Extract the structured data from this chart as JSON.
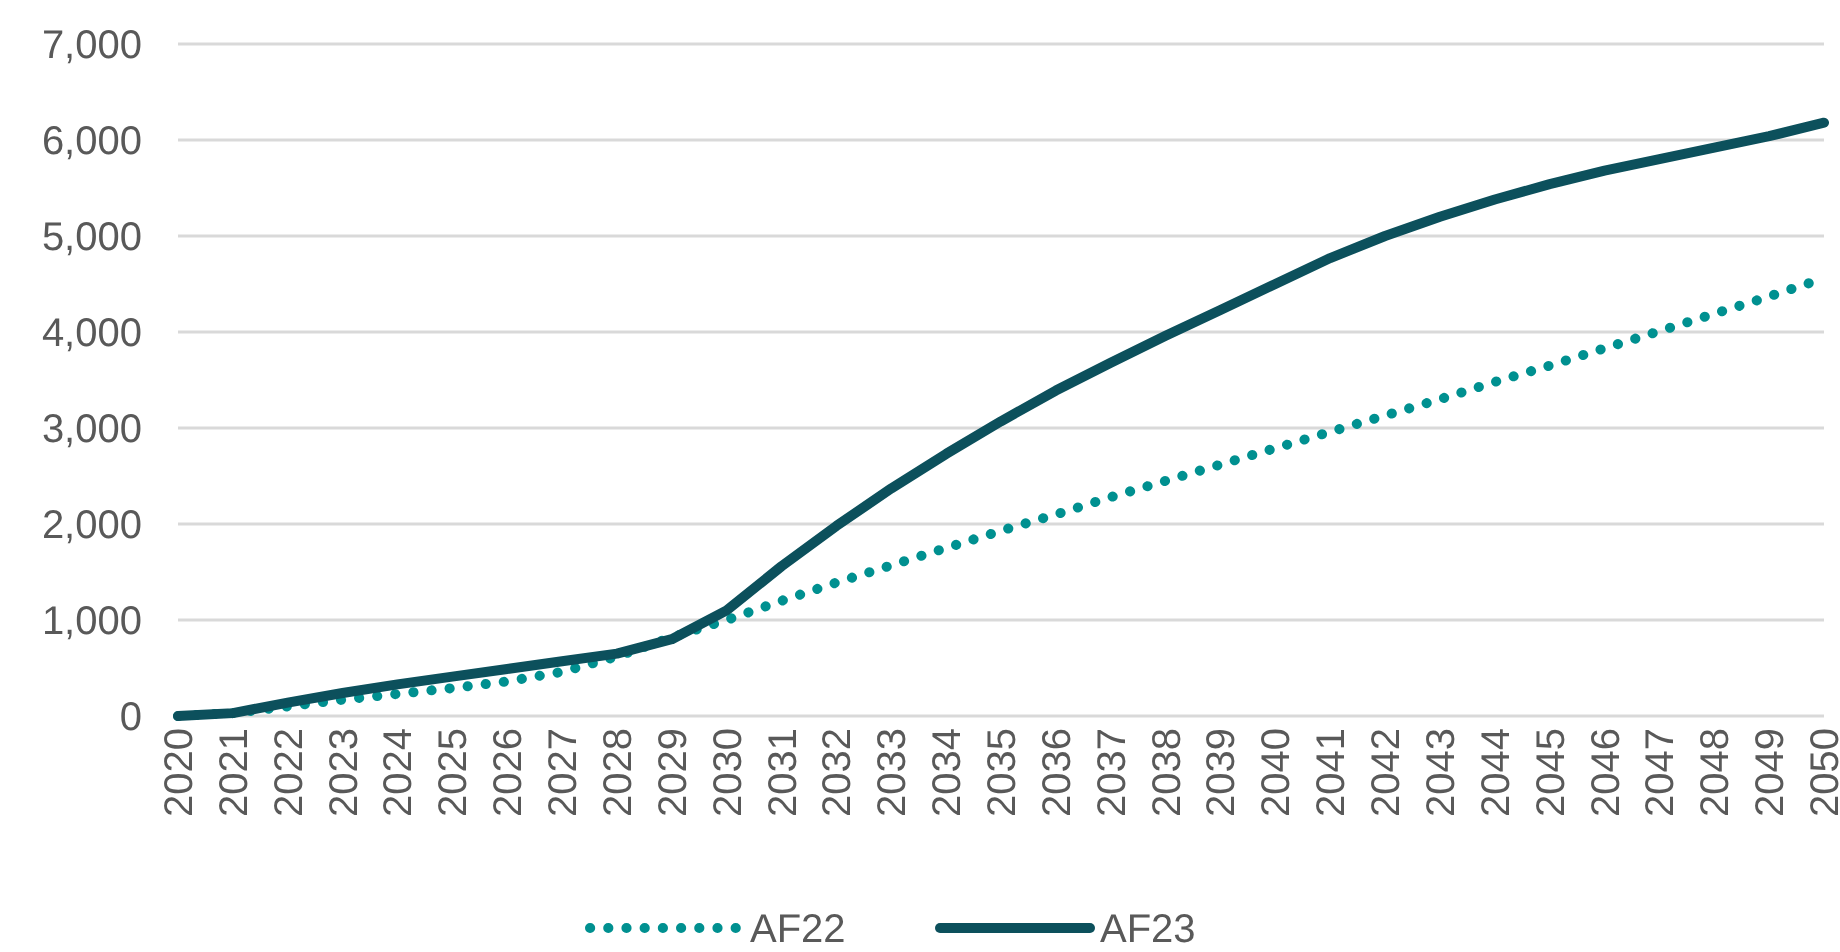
{
  "chart_data": {
    "type": "line",
    "x": [
      2020,
      2021,
      2022,
      2023,
      2024,
      2025,
      2026,
      2027,
      2028,
      2029,
      2030,
      2031,
      2032,
      2033,
      2034,
      2035,
      2036,
      2037,
      2038,
      2039,
      2040,
      2041,
      2042,
      2043,
      2044,
      2045,
      2046,
      2047,
      2048,
      2049,
      2050
    ],
    "series": [
      {
        "name": "AF22",
        "color": "#009090",
        "line_style": "dotted",
        "values": [
          0,
          30,
          100,
          170,
          230,
          290,
          360,
          460,
          620,
          820,
          1000,
          1200,
          1390,
          1570,
          1750,
          1930,
          2100,
          2280,
          2450,
          2620,
          2790,
          2960,
          3130,
          3300,
          3480,
          3650,
          3830,
          4010,
          4190,
          4370,
          4560
        ]
      },
      {
        "name": "AF23",
        "color": "#0c505c",
        "line_style": "solid",
        "values": [
          0,
          30,
          140,
          240,
          330,
          410,
          490,
          570,
          650,
          800,
          1100,
          1560,
          1980,
          2370,
          2730,
          3070,
          3390,
          3680,
          3960,
          4230,
          4500,
          4770,
          5000,
          5200,
          5380,
          5540,
          5680,
          5800,
          5920,
          6040,
          6180
        ]
      }
    ],
    "xlim": [
      2020,
      2050
    ],
    "xticks": [
      2020,
      2021,
      2022,
      2023,
      2024,
      2025,
      2026,
      2027,
      2028,
      2029,
      2030,
      2031,
      2032,
      2033,
      2034,
      2035,
      2036,
      2037,
      2038,
      2039,
      2040,
      2041,
      2042,
      2043,
      2044,
      2045,
      2046,
      2047,
      2048,
      2049,
      2050
    ],
    "ylim": [
      0,
      7000
    ],
    "yticks": [
      {
        "value": 0,
        "label": "0"
      },
      {
        "value": 1000,
        "label": "1,000"
      },
      {
        "value": 2000,
        "label": "2,000"
      },
      {
        "value": 3000,
        "label": "3,000"
      },
      {
        "value": 4000,
        "label": "4,000"
      },
      {
        "value": 5000,
        "label": "5,000"
      },
      {
        "value": 6000,
        "label": "6,000"
      },
      {
        "value": 7000,
        "label": "7,000"
      }
    ],
    "grid": "y",
    "legend": "bottom"
  }
}
